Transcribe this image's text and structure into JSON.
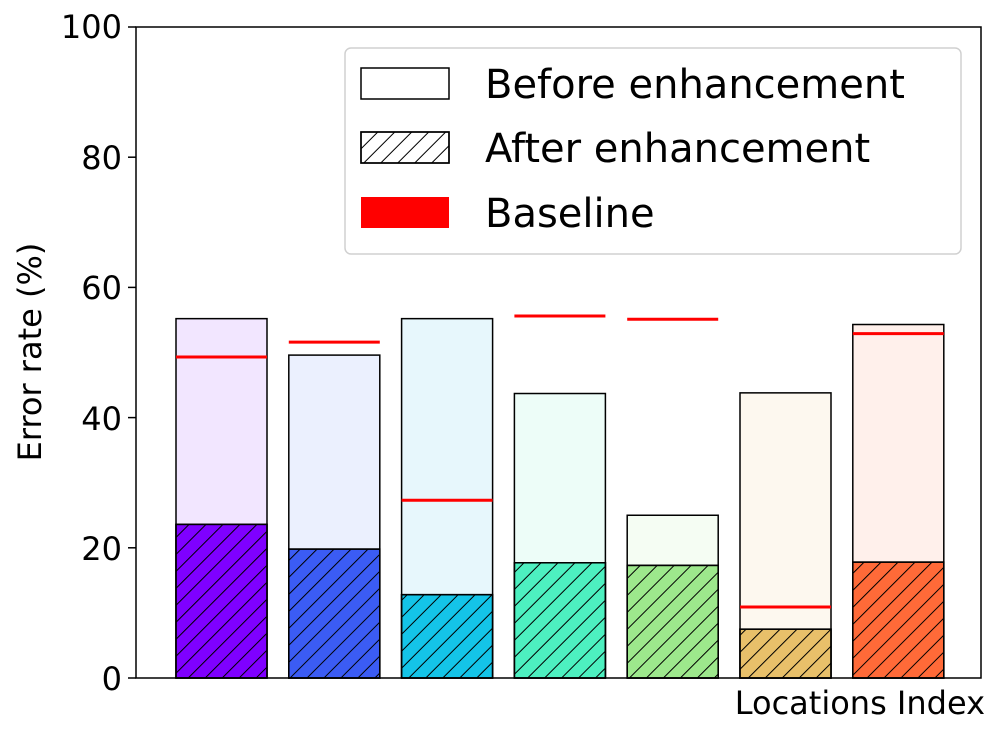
{
  "chart_data": {
    "type": "bar",
    "xlabel": "Locations Index",
    "ylabel": "Error rate (%)",
    "ylim": [
      0,
      100
    ],
    "yticks": [
      "0",
      "20",
      "40",
      "60",
      "80",
      "100"
    ],
    "legend_position": "top-right",
    "legend": {
      "before": "Before enhancement",
      "after": "After enhancement",
      "baseline": "Baseline"
    },
    "colors": [
      "#7f00ff",
      "#3b5cf4",
      "#14c4e8",
      "#4df0c0",
      "#9de88c",
      "#e8c06a",
      "#ff6a38"
    ],
    "light_colors": [
      "#f2e6ff",
      "#ebf0fe",
      "#e7f7fc",
      "#edfdf8",
      "#f5fdf3",
      "#fdf8ef",
      "#fff0eb"
    ],
    "baseline_color": "#ff0000",
    "series": [
      {
        "name": "Before enhancement",
        "values": [
          55.2,
          49.6,
          55.2,
          43.7,
          25.0,
          43.8,
          54.3
        ]
      },
      {
        "name": "After enhancement",
        "values": [
          23.6,
          19.8,
          12.8,
          17.7,
          17.3,
          7.5,
          17.8
        ]
      },
      {
        "name": "Baseline",
        "values": [
          49.3,
          51.6,
          27.3,
          55.6,
          55.1,
          10.9,
          52.9
        ]
      }
    ]
  }
}
